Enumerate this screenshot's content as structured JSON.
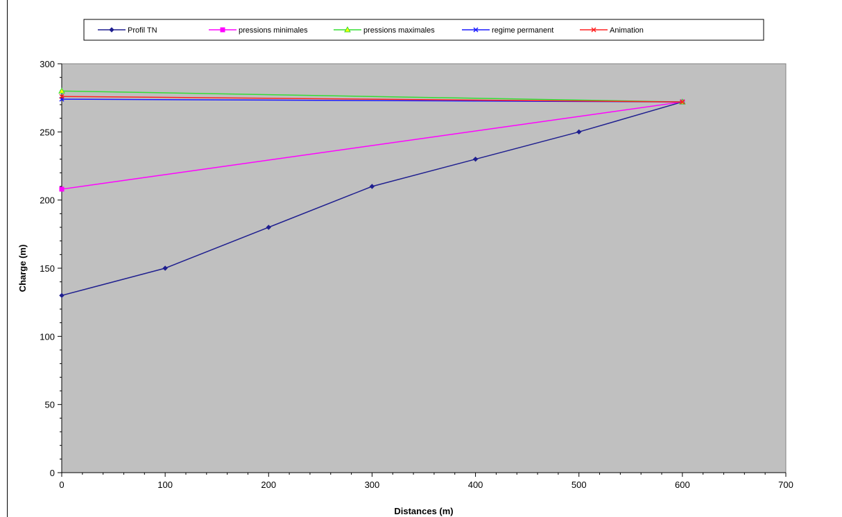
{
  "chart_data": {
    "type": "line",
    "title": "",
    "xlabel": "Distances (m)",
    "ylabel": "Charge (m)",
    "xlim": [
      0,
      700
    ],
    "ylim": [
      0,
      300
    ],
    "x_ticks": [
      0,
      100,
      200,
      300,
      400,
      500,
      600,
      700
    ],
    "y_ticks": [
      0,
      50,
      100,
      150,
      200,
      250,
      300
    ],
    "plot_background": "#c0c0c0",
    "grid": false,
    "legend_position": "top",
    "series": [
      {
        "name": "Profil TN",
        "color": "#1f1f8f",
        "marker": "diamond",
        "x": [
          0,
          100,
          200,
          300,
          400,
          500,
          600
        ],
        "y": [
          130,
          150,
          180,
          210,
          230,
          250,
          272
        ]
      },
      {
        "name": "pressions minimales",
        "color": "#ff00ff",
        "marker": "square",
        "x": [
          0,
          600
        ],
        "y": [
          208,
          272
        ]
      },
      {
        "name": "pressions maximales",
        "color": "#33dd33",
        "marker": "triangle",
        "x": [
          0,
          600
        ],
        "y": [
          280,
          272
        ]
      },
      {
        "name": "regime permanent",
        "color": "#1a1aff",
        "marker": "x",
        "x": [
          0,
          600
        ],
        "y": [
          274,
          272
        ]
      },
      {
        "name": "Animation",
        "color": "#ff2020",
        "marker": "x",
        "x": [
          0,
          600
        ],
        "y": [
          276,
          272
        ]
      }
    ]
  }
}
